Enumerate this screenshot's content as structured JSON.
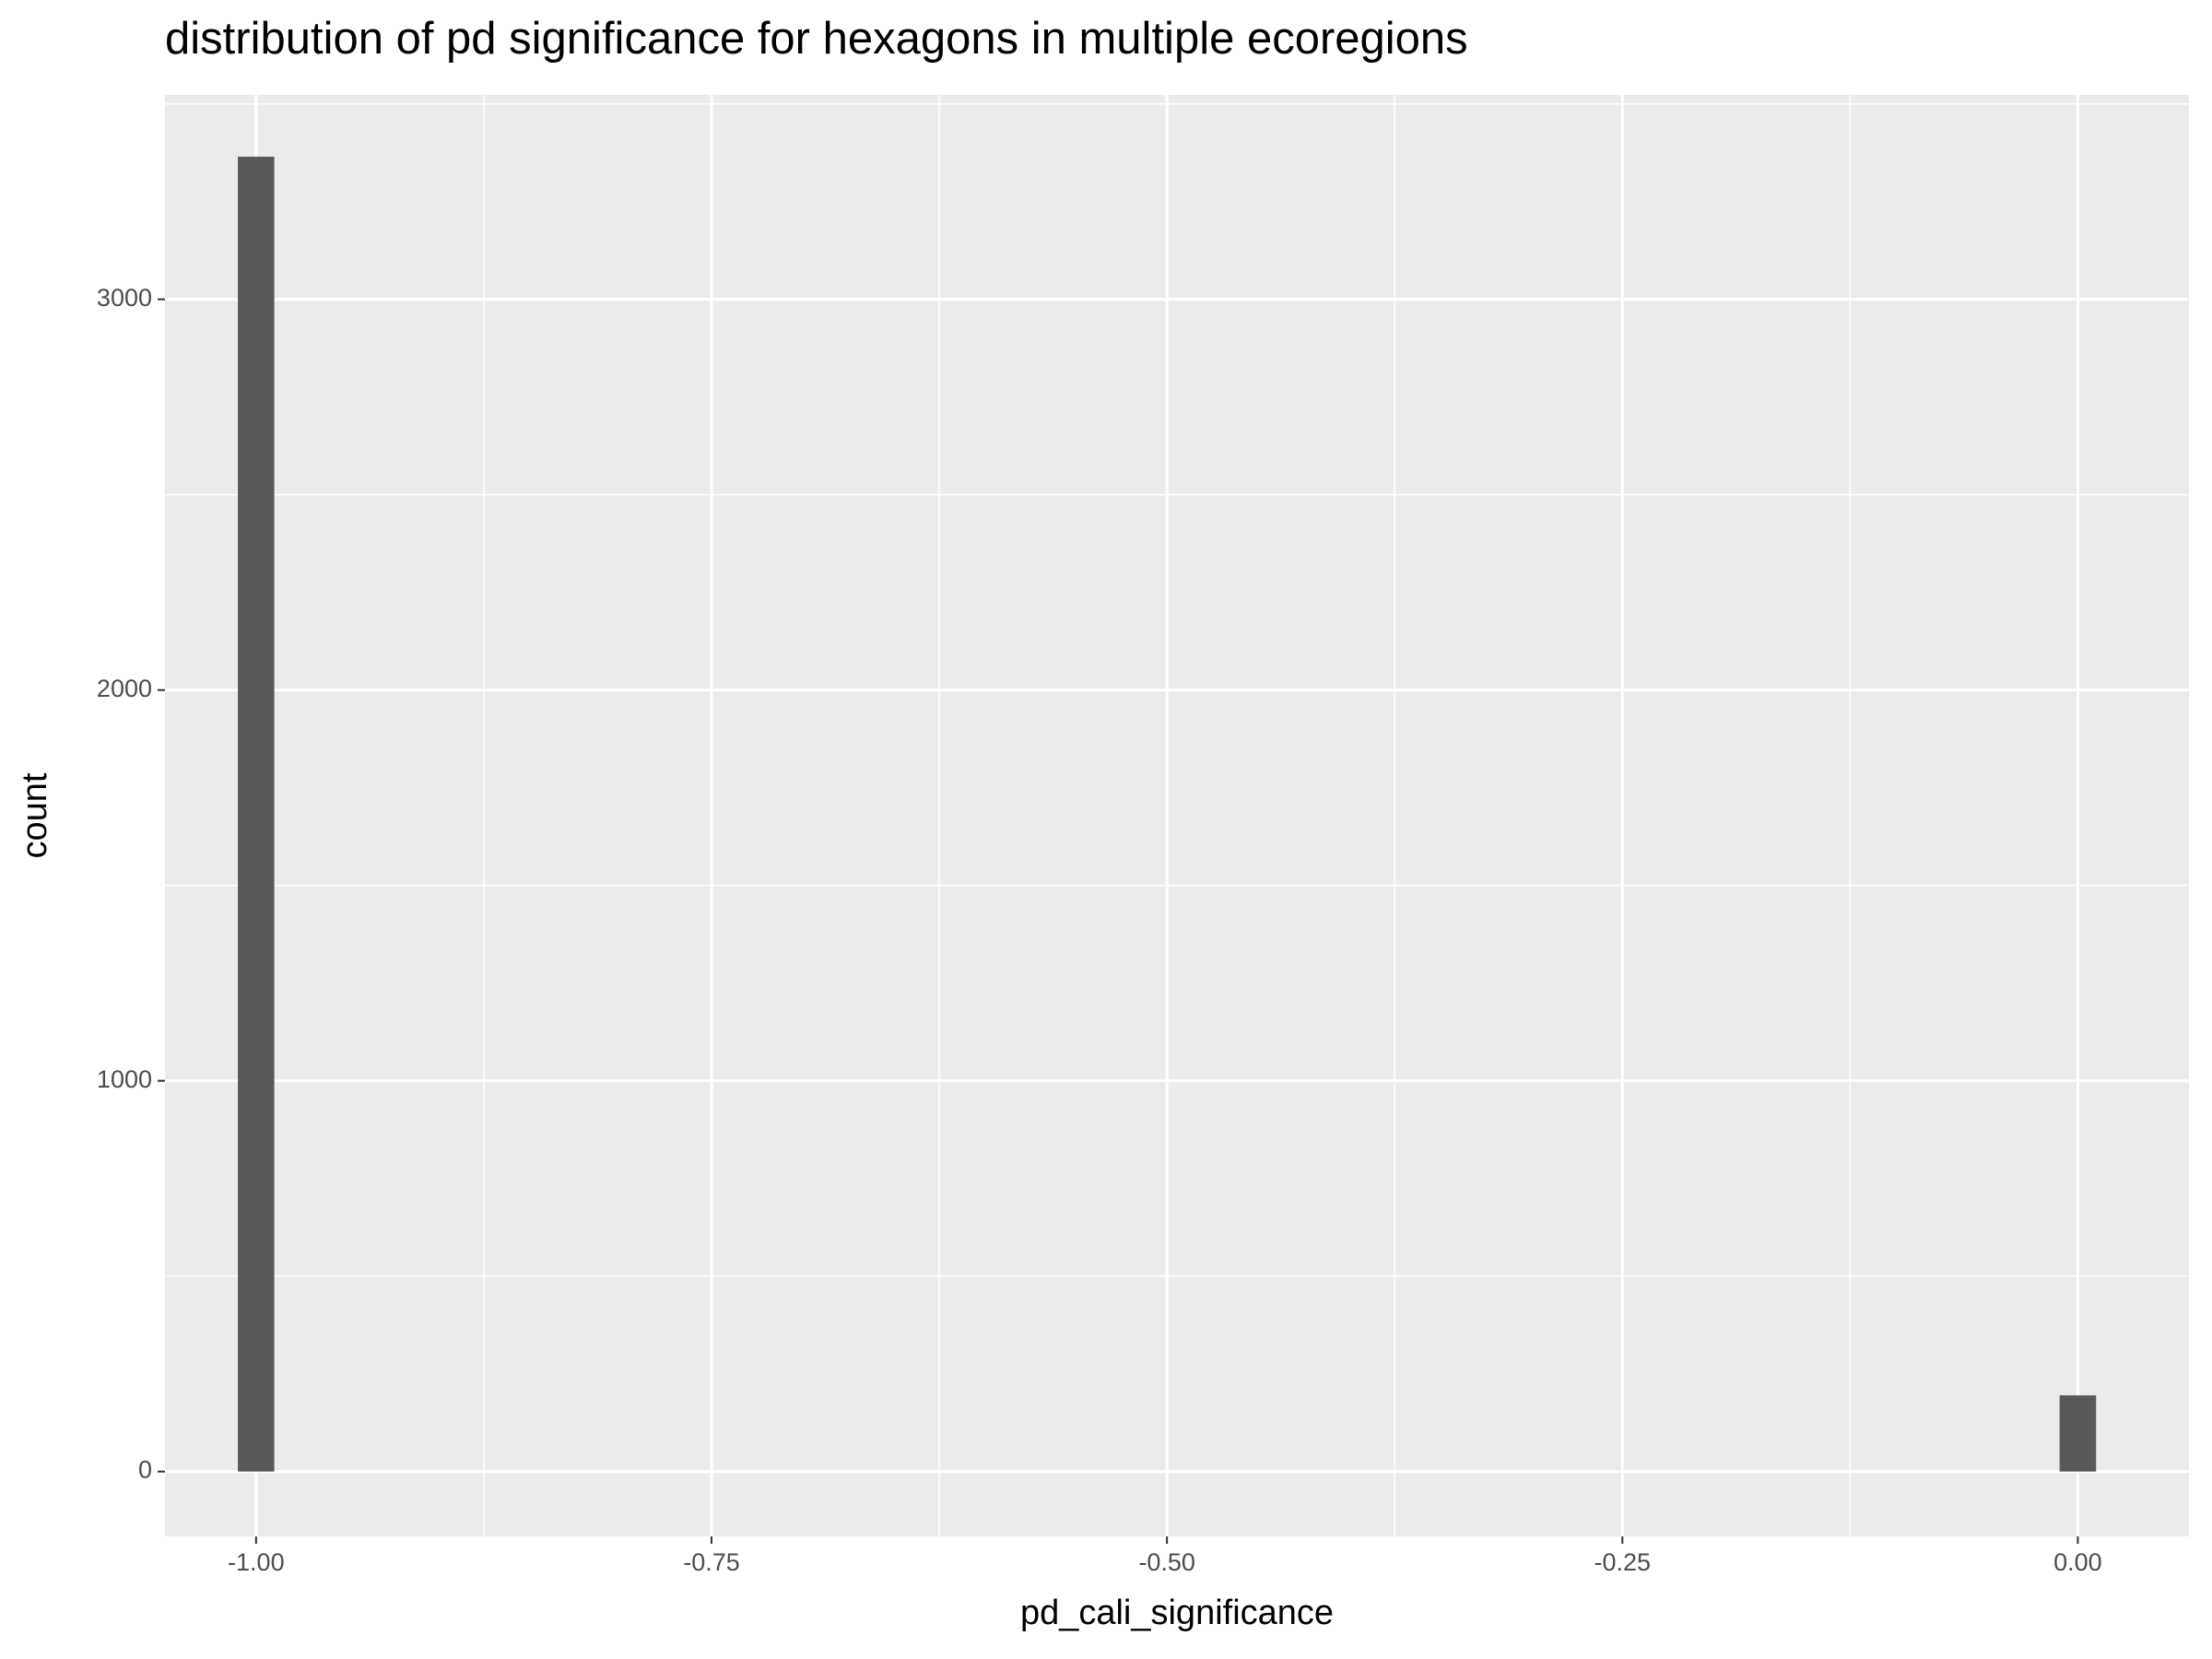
{
  "chart_data": {
    "type": "histogram",
    "title": "distribution of pd significance for hexagons in multiple ecoregions",
    "x_label": "pd_cali_significance",
    "y_label": "count",
    "bins": [
      -1.01,
      -0.99,
      -0.01,
      0.01
    ],
    "values": [
      3365,
      0,
      195
    ],
    "color": "#595959",
    "xlim": [
      -1.05,
      0.061
    ],
    "ylim": [
      -166,
      3523
    ],
    "xticks": [
      {
        "value": -1,
        "label": "-1.00"
      },
      {
        "value": -0.75,
        "label": "-0.75"
      },
      {
        "value": -0.5,
        "label": "-0.50"
      },
      {
        "value": -0.25,
        "label": "-0.25"
      },
      {
        "value": 0,
        "label": "0.00"
      }
    ],
    "yticks": [
      0,
      1000,
      2000,
      3000
    ],
    "grid": true
  }
}
